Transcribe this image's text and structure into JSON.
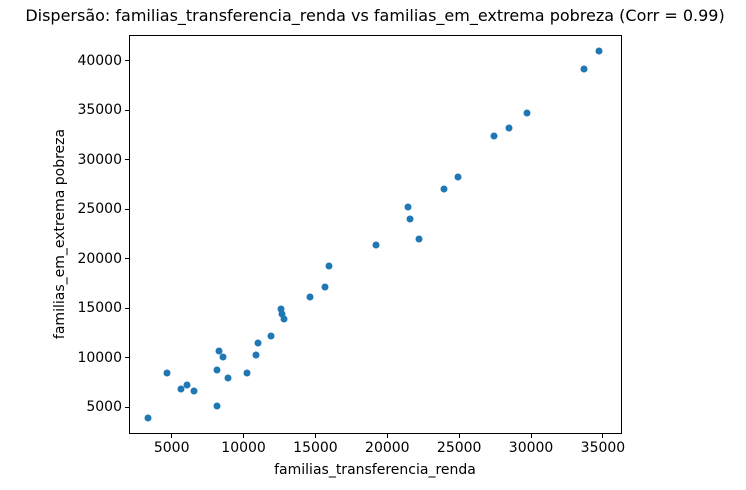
{
  "chart_data": {
    "type": "scatter",
    "title": "Dispersão: familias_transferencia_renda vs familias_em_extrema pobreza (Corr = 0.99)",
    "xlabel": "familias_transferencia_renda",
    "ylabel": "familias_em_extrema pobreza",
    "correlation": "0.99",
    "xlim": [
      2030,
      36325
    ],
    "ylim": [
      2304,
      42597
    ],
    "x_ticks": [
      5000,
      10000,
      15000,
      20000,
      25000,
      30000,
      35000
    ],
    "y_ticks": [
      5000,
      10000,
      15000,
      20000,
      25000,
      30000,
      35000,
      40000
    ],
    "grid": false,
    "legend": "none",
    "marker_color": "#1f77b4",
    "points": [
      [
        3340,
        3970
      ],
      [
        4650,
        8460
      ],
      [
        5650,
        6890
      ],
      [
        6060,
        7260
      ],
      [
        6540,
        6630
      ],
      [
        8140,
        8800
      ],
      [
        8170,
        5120
      ],
      [
        8270,
        10700
      ],
      [
        8570,
        10040
      ],
      [
        8950,
        7990
      ],
      [
        10270,
        8510
      ],
      [
        10830,
        10300
      ],
      [
        11020,
        11540
      ],
      [
        11890,
        12230
      ],
      [
        12580,
        14930
      ],
      [
        12650,
        14420
      ],
      [
        12830,
        13890
      ],
      [
        14610,
        16160
      ],
      [
        15640,
        17100
      ],
      [
        15920,
        19300
      ],
      [
        19210,
        21390
      ],
      [
        21460,
        25260
      ],
      [
        21580,
        24020
      ],
      [
        22200,
        22030
      ],
      [
        23940,
        27080
      ],
      [
        24920,
        28260
      ],
      [
        27420,
        32400
      ],
      [
        28480,
        33180
      ],
      [
        29700,
        34700
      ],
      [
        33680,
        39130
      ],
      [
        34720,
        41010
      ]
    ]
  }
}
